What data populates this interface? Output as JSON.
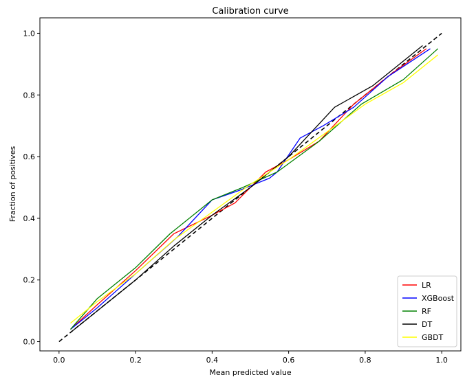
{
  "chart_data": {
    "type": "line",
    "title": "Calibration curve",
    "xlabel": "Mean predicted value",
    "ylabel": "Fraction of positives",
    "xlim": [
      -0.05,
      1.05
    ],
    "ylim": [
      -0.03,
      1.05
    ],
    "xticks": [
      0.0,
      0.2,
      0.4,
      0.6,
      0.8,
      1.0
    ],
    "yticks": [
      0.0,
      0.2,
      0.4,
      0.6,
      0.8,
      1.0
    ],
    "xtick_labels": [
      "0.0",
      "0.2",
      "0.4",
      "0.6",
      "0.8",
      "1.0"
    ],
    "ytick_labels": [
      "0.0",
      "0.2",
      "0.4",
      "0.6",
      "0.8",
      "1.0"
    ],
    "grid": false,
    "legend_position": "lower-right",
    "reference_line": {
      "style": "dashed",
      "color": "#000000",
      "x": [
        0,
        1
      ],
      "y": [
        0,
        1
      ]
    },
    "series": [
      {
        "name": "LR",
        "color": "#ff0000",
        "x": [
          0.03,
          0.1,
          0.2,
          0.3,
          0.4,
          0.46,
          0.54,
          0.6,
          0.68,
          0.77,
          0.87,
          0.96
        ],
        "y": [
          0.04,
          0.12,
          0.23,
          0.35,
          0.41,
          0.45,
          0.55,
          0.59,
          0.65,
          0.77,
          0.87,
          0.95
        ]
      },
      {
        "name": "XGBoost",
        "color": "#0000ff",
        "x": [
          0.03,
          0.1,
          0.2,
          0.31,
          0.4,
          0.47,
          0.55,
          0.57,
          0.63,
          0.69,
          0.77,
          0.86,
          0.97
        ],
        "y": [
          0.04,
          0.11,
          0.22,
          0.34,
          0.46,
          0.49,
          0.53,
          0.55,
          0.66,
          0.7,
          0.76,
          0.86,
          0.95
        ]
      },
      {
        "name": "RF",
        "color": "#008000",
        "x": [
          0.03,
          0.1,
          0.2,
          0.29,
          0.4,
          0.48,
          0.57,
          0.68,
          0.79,
          0.9,
          0.99
        ],
        "y": [
          0.04,
          0.14,
          0.24,
          0.35,
          0.46,
          0.5,
          0.55,
          0.65,
          0.77,
          0.85,
          0.95
        ]
      },
      {
        "name": "DT",
        "color": "#000000",
        "x": [
          0.03,
          0.1,
          0.2,
          0.3,
          0.4,
          0.5,
          0.6,
          0.72,
          0.82,
          0.95
        ],
        "y": [
          0.03,
          0.1,
          0.2,
          0.31,
          0.41,
          0.5,
          0.6,
          0.76,
          0.83,
          0.96
        ]
      },
      {
        "name": "GBDT",
        "color": "#ffff00",
        "x": [
          0.03,
          0.1,
          0.2,
          0.3,
          0.4,
          0.5,
          0.6,
          0.7,
          0.8,
          0.9,
          0.99
        ],
        "y": [
          0.06,
          0.13,
          0.22,
          0.33,
          0.42,
          0.51,
          0.59,
          0.68,
          0.77,
          0.84,
          0.93
        ]
      }
    ]
  }
}
